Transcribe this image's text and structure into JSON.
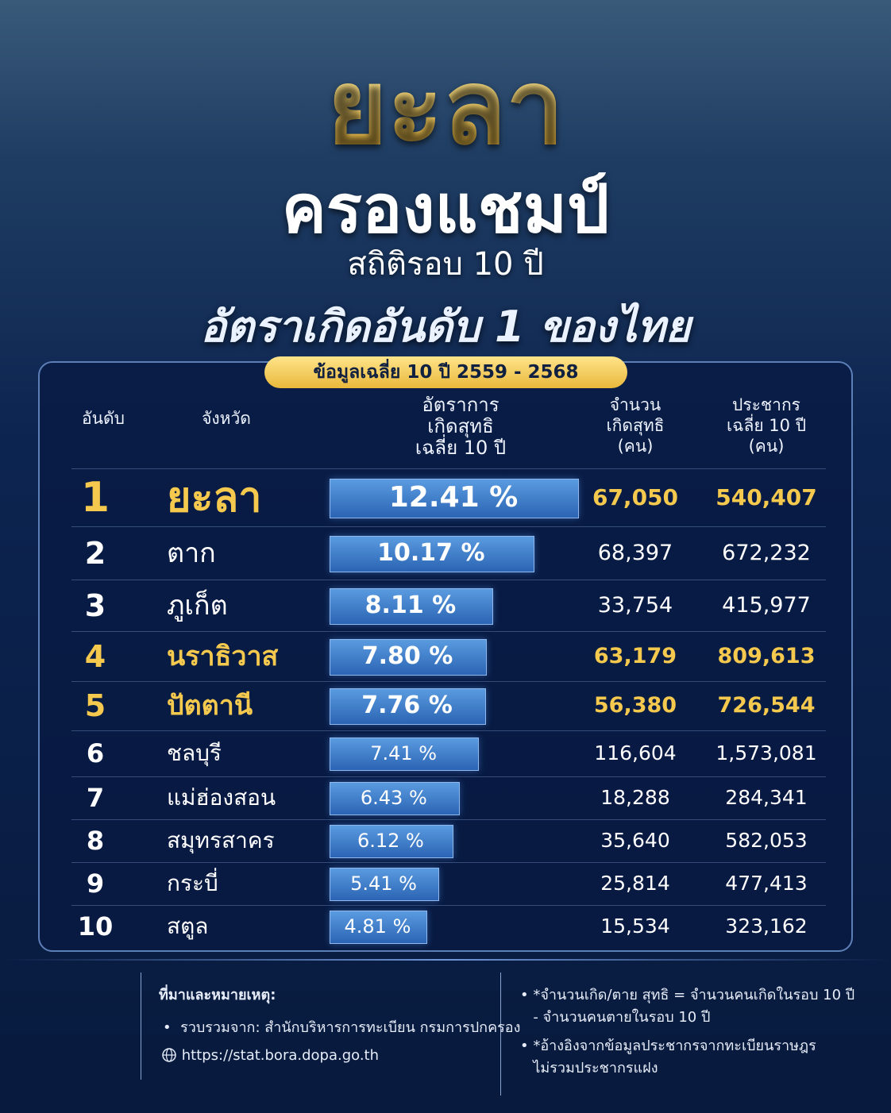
{
  "header": {
    "title": "ยะลา",
    "subtitle": "ครองแชมป์",
    "tagline": "สถิติรอบ 10 ปี",
    "headline": "อัตราเกิดอันดับ 1 ของไทย"
  },
  "table": {
    "badge": "ข้อมูลเฉลี่ย 10 ปี 2559 - 2568",
    "columns": [
      "อันดับ",
      "จังหวัด",
      "อัตราการ\nเกิดสุทธิ\nเฉลี่ย 10 ปี",
      "จำนวน\nเกิดสุทธิ\n(คน)",
      "ประชากร\nเฉลี่ย 10 ปี\n(คน)"
    ],
    "rows": [
      {
        "rank": "1",
        "province": "ยะลา",
        "rate": {
          "value": 12.41,
          "label": "12.41 %"
        },
        "births": "67,050",
        "population": "540,407",
        "highlight": true
      },
      {
        "rank": "2",
        "province": "ตาก",
        "rate": {
          "value": 10.17,
          "label": "10.17 %"
        },
        "births": "68,397",
        "population": "672,232",
        "highlight": false
      },
      {
        "rank": "3",
        "province": "ภูเก็ต",
        "rate": {
          "value": 8.11,
          "label": "8.11 %"
        },
        "births": "33,754",
        "population": "415,977",
        "highlight": false
      },
      {
        "rank": "4",
        "province": "นราธิวาส",
        "rate": {
          "value": 7.8,
          "label": "7.80 %"
        },
        "births": "63,179",
        "population": "809,613",
        "highlight": true
      },
      {
        "rank": "5",
        "province": "ปัตตานี",
        "rate": {
          "value": 7.76,
          "label": "7.76 %"
        },
        "births": "56,380",
        "population": "726,544",
        "highlight": true
      },
      {
        "rank": "6",
        "province": "ชลบุรี",
        "rate": {
          "value": 7.41,
          "label": "7.41 %"
        },
        "births": "116,604",
        "population": "1,573,081",
        "highlight": false
      },
      {
        "rank": "7",
        "province": "แม่ฮ่องสอน",
        "rate": {
          "value": 6.43,
          "label": "6.43 %"
        },
        "births": "18,288",
        "population": "284,341",
        "highlight": false
      },
      {
        "rank": "8",
        "province": "สมุทรสาคร",
        "rate": {
          "value": 6.12,
          "label": "6.12 %"
        },
        "births": "35,640",
        "population": "582,053",
        "highlight": false
      },
      {
        "rank": "9",
        "province": "กระบี่",
        "rate": {
          "value": 5.41,
          "label": "5.41 %"
        },
        "births": "25,814",
        "population": "477,413",
        "highlight": false
      },
      {
        "rank": "10",
        "province": "สตูล",
        "rate": {
          "value": 4.81,
          "label": "4.81 %"
        },
        "births": "15,534",
        "population": "323,162",
        "highlight": false
      }
    ]
  },
  "footer": {
    "source_title": "ที่มาและหมายเหตุ:",
    "source": "รวบรวมจาก: สำนักบริหารการทะเบียน กรมการปกครอง",
    "url": "https://stat.bora.dopa.go.th",
    "notes": [
      "*จำนวนเกิด/ตาย สุทธิ = จำนวนคนเกิดในรอบ 10 ปี\n- จำนวนคนตายในรอบ 10 ปี",
      "*อ้างอิงจากข้อมูลประชากรจากทะเบียนราษฎร\nไม่รวมประชากรแฝง"
    ]
  }
}
